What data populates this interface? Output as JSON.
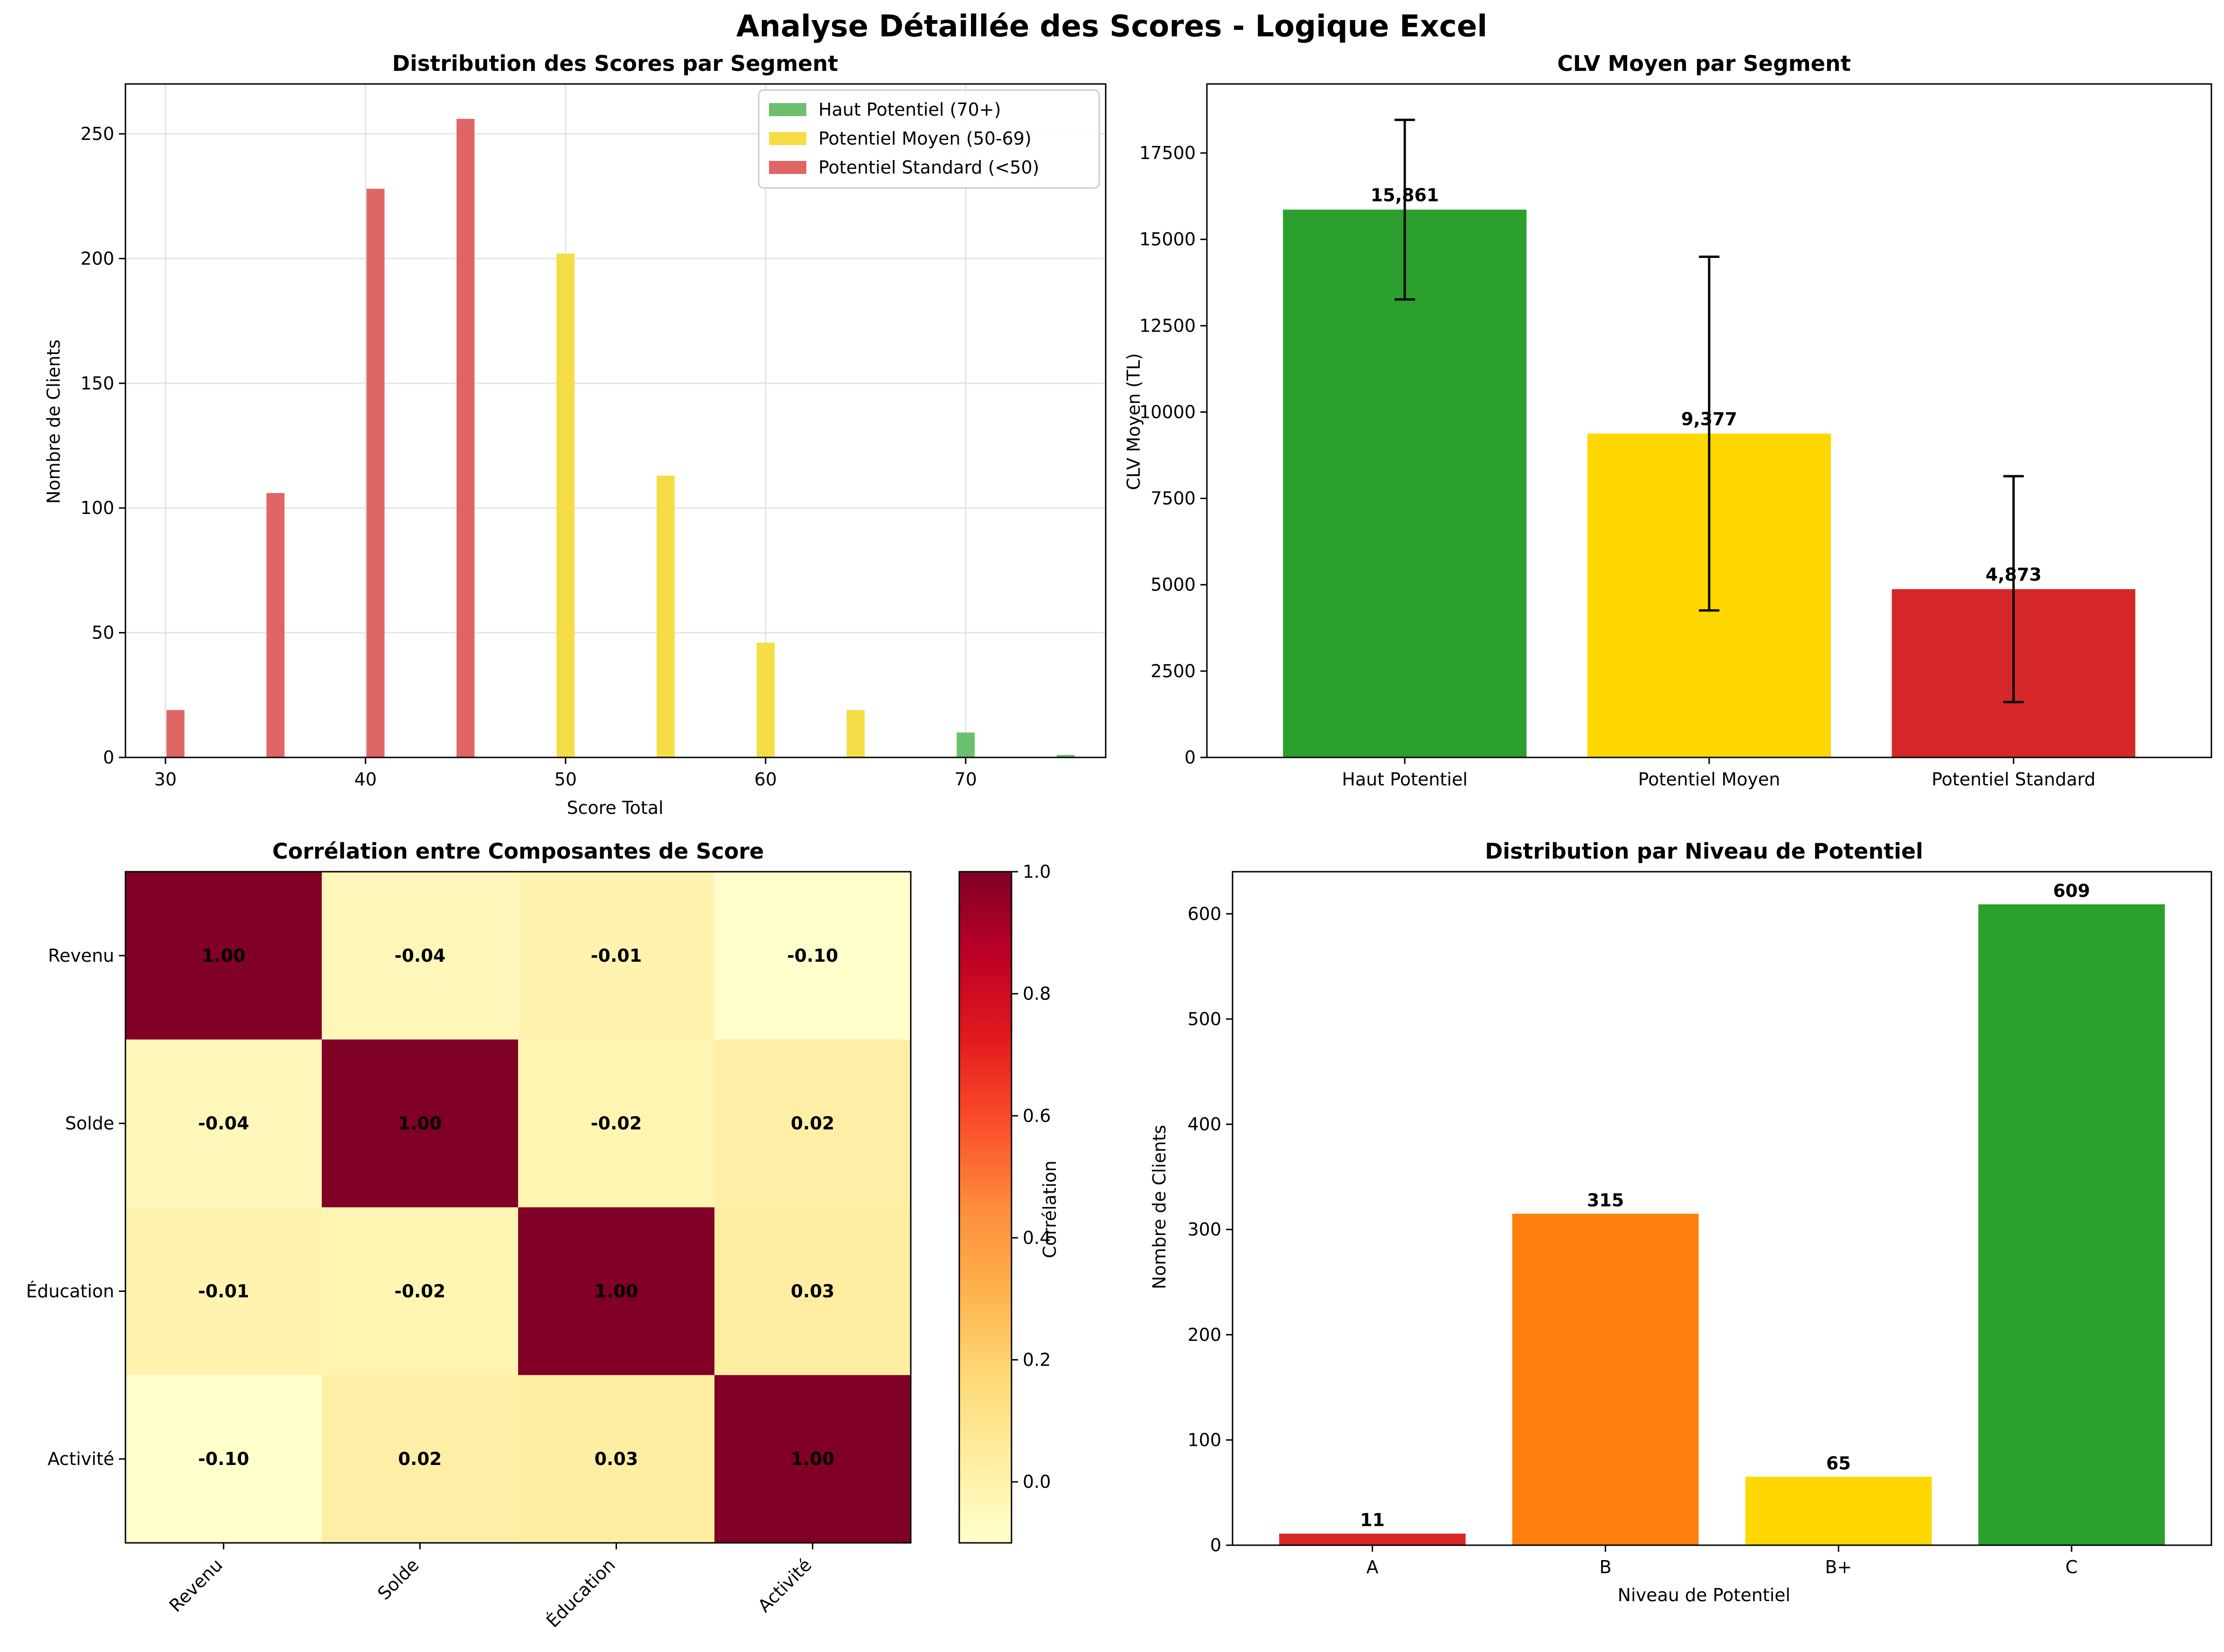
{
  "figure": {
    "suptitle": "Analyse Détaillée des Scores - Logique Excel"
  },
  "chart_data": [
    {
      "type": "bar",
      "title": "Distribution des Scores par Segment",
      "xlabel": "Score Total",
      "ylabel": "Nombre de Clients",
      "xlim": [
        28,
        77
      ],
      "ylim": [
        0,
        270
      ],
      "xticks": [
        30,
        40,
        50,
        60,
        70
      ],
      "yticks": [
        0,
        50,
        100,
        150,
        200,
        250
      ],
      "grid": true,
      "legend": "top-right",
      "series": [
        {
          "name": "Haut Potentiel (70+)",
          "color": "#6cbf6c",
          "points": [
            {
              "x": 70,
              "y": 10
            },
            {
              "x": 75,
              "y": 1
            }
          ]
        },
        {
          "name": "Potentiel Moyen (50-69)",
          "color": "#f7dd45",
          "points": [
            {
              "x": 50,
              "y": 202
            },
            {
              "x": 55,
              "y": 113
            },
            {
              "x": 60,
              "y": 46
            },
            {
              "x": 64.5,
              "y": 19
            }
          ]
        },
        {
          "name": "Potentiel Standard (<50)",
          "color": "#e06666",
          "points": [
            {
              "x": 30.5,
              "y": 19
            },
            {
              "x": 35.5,
              "y": 106
            },
            {
              "x": 40.5,
              "y": 228
            },
            {
              "x": 45,
              "y": 256
            }
          ]
        }
      ]
    },
    {
      "type": "bar",
      "title": "CLV Moyen par Segment",
      "ylabel": "CLV Moyen (TL)",
      "ylim": [
        0,
        19500
      ],
      "yticks": [
        0,
        2500,
        5000,
        7500,
        10000,
        12500,
        15000,
        17500
      ],
      "categories": [
        "Haut Potentiel",
        "Potentiel Moyen",
        "Potentiel Standard"
      ],
      "values": [
        15861,
        9377,
        4873
      ],
      "labels": [
        "15,861",
        "9,377",
        "4,873"
      ],
      "error": [
        2600,
        5120,
        3270
      ],
      "colors": [
        "#2ca02c",
        "#ffd700",
        "#d62728"
      ]
    },
    {
      "type": "heatmap",
      "title": "Corrélation entre Composantes de Score",
      "rows": [
        "Revenu",
        "Solde",
        "Éducation",
        "Activité"
      ],
      "cols": [
        "Revenu",
        "Solde",
        "Éducation",
        "Activité"
      ],
      "values": [
        [
          1.0,
          -0.04,
          -0.01,
          -0.1
        ],
        [
          -0.04,
          1.0,
          -0.02,
          0.02
        ],
        [
          -0.01,
          -0.02,
          1.0,
          0.03
        ],
        [
          -0.1,
          0.02,
          0.03,
          1.0
        ]
      ],
      "cell_labels": [
        [
          "1.00",
          "-0.04",
          "-0.01",
          "-0.10"
        ],
        [
          "-0.04",
          "1.00",
          "-0.02",
          "0.02"
        ],
        [
          "-0.01",
          "-0.02",
          "1.00",
          "0.03"
        ],
        [
          "-0.10",
          "0.02",
          "0.03",
          "1.00"
        ]
      ],
      "colorbar": {
        "label": "Corrélation",
        "range": [
          -0.1,
          1.0
        ],
        "ticks": [
          "1.0",
          "0.8",
          "0.6",
          "0.4",
          "0.2",
          "0.0"
        ],
        "tick_values": [
          1.0,
          0.8,
          0.6,
          0.4,
          0.2,
          0.0
        ]
      },
      "colormap": "YlOrRd"
    },
    {
      "type": "bar",
      "title": "Distribution par Niveau de Potentiel",
      "xlabel": "Niveau de Potentiel",
      "ylabel": "Nombre de Clients",
      "ylim": [
        0,
        640
      ],
      "yticks": [
        0,
        100,
        200,
        300,
        400,
        500,
        600
      ],
      "categories": [
        "A",
        "B",
        "B+",
        "C"
      ],
      "values": [
        11,
        315,
        65,
        609
      ],
      "colors": [
        "#d62728",
        "#ff7f0e",
        "#ffd700",
        "#2ca02c"
      ]
    }
  ]
}
